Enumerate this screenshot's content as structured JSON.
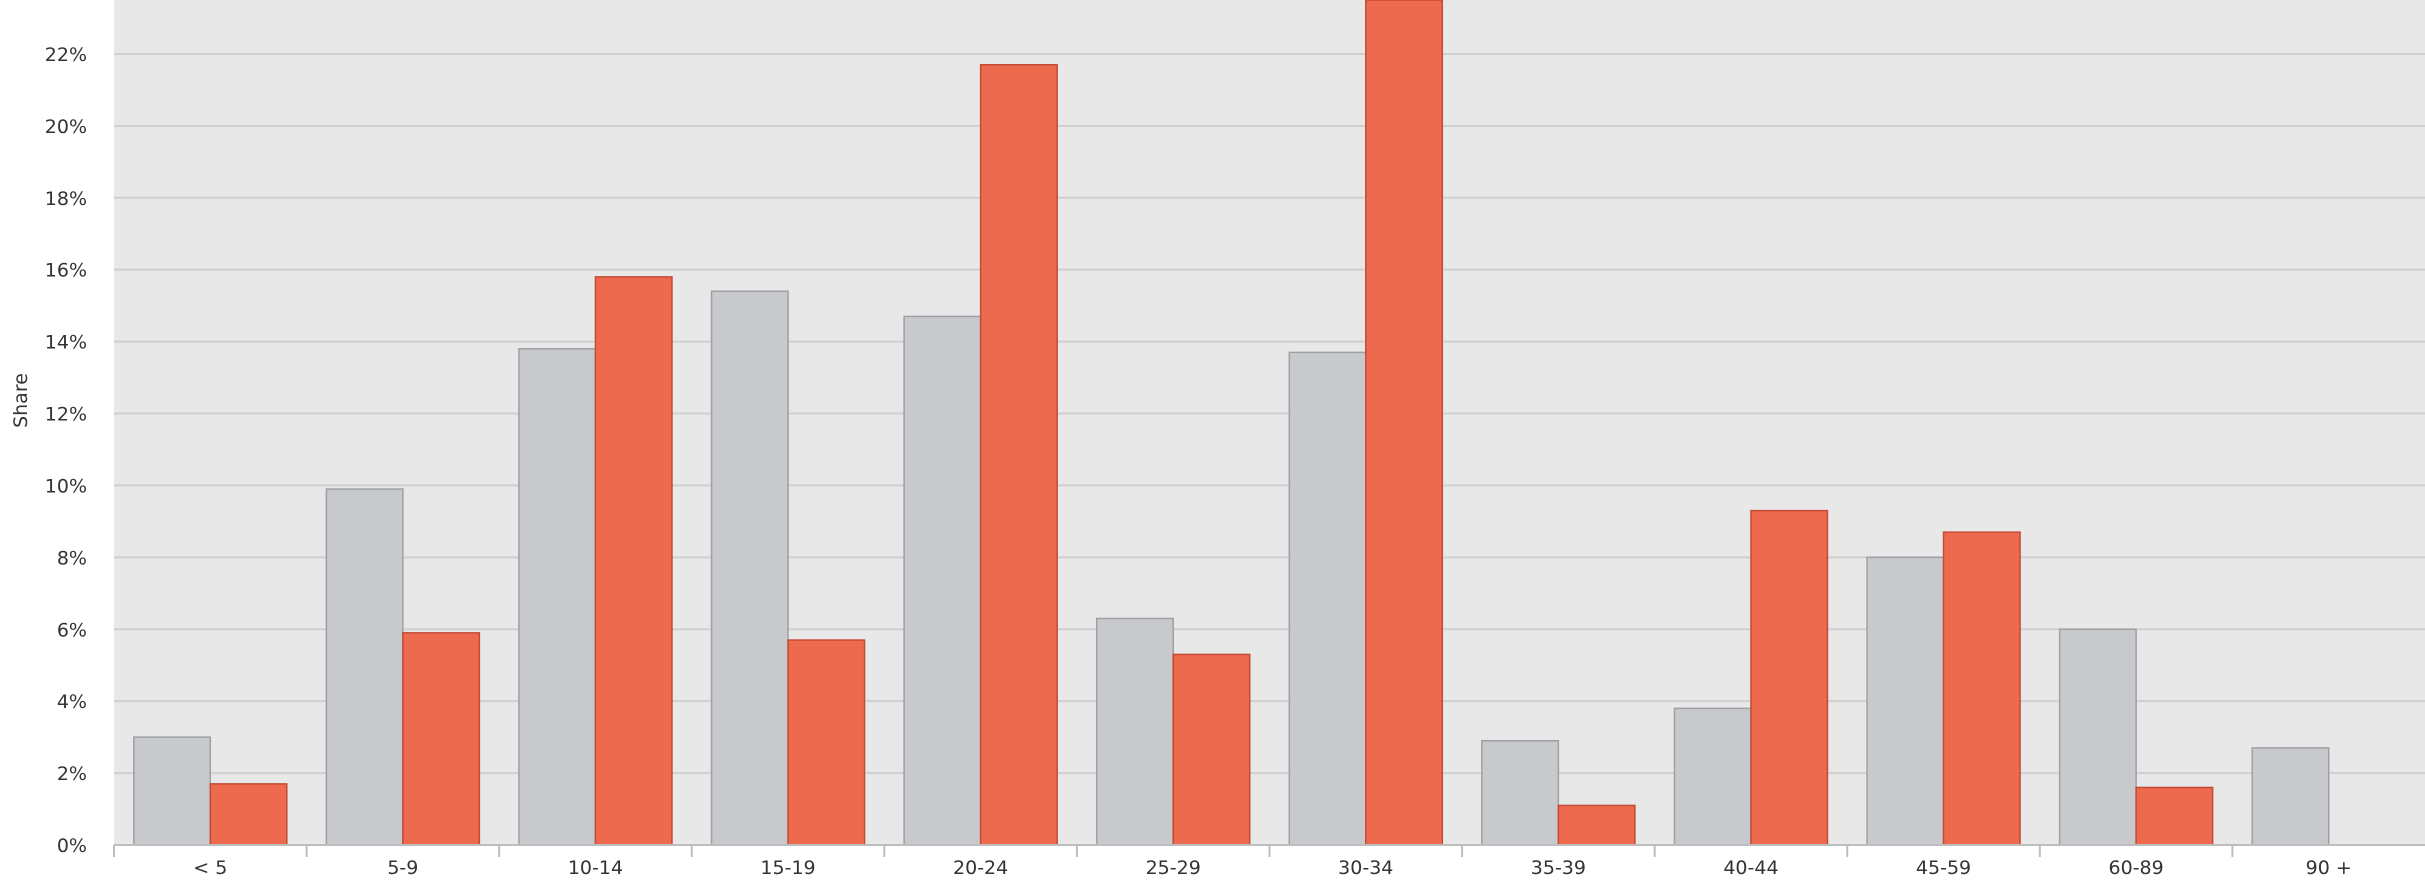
{
  "chart_data": {
    "type": "bar",
    "title": "",
    "xlabel": "",
    "ylabel": "Share",
    "ylim": [
      0,
      23.5
    ],
    "y_ticks": [
      0,
      2,
      4,
      6,
      8,
      10,
      12,
      14,
      16,
      18,
      20,
      22
    ],
    "y_tick_labels": [
      "0%",
      "2%",
      "4%",
      "6%",
      "8%",
      "10%",
      "12%",
      "14%",
      "16%",
      "18%",
      "20%",
      "22%"
    ],
    "grid": true,
    "categories": [
      "< 5",
      "5-9",
      "10-14",
      "15-19",
      "20-24",
      "25-29",
      "30-34",
      "35-39",
      "40-44",
      "45-59",
      "60-89",
      "90 +"
    ],
    "series": [
      {
        "values": [
          3.0,
          9.9,
          13.8,
          15.4,
          14.7,
          6.3,
          13.7,
          2.9,
          3.8,
          8.0,
          6.0,
          2.7
        ],
        "color": "#c8c9cd",
        "stroke": "#9fa0a4"
      },
      {
        "values": [
          1.7,
          5.9,
          15.8,
          5.7,
          21.7,
          5.3,
          23.5,
          1.1,
          9.3,
          8.7,
          1.6,
          null
        ],
        "color": "#ee6a4f",
        "stroke": "#c24b35"
      }
    ],
    "plot_background": "#e8e8e8",
    "grid_color": "#cfcfcf"
  }
}
